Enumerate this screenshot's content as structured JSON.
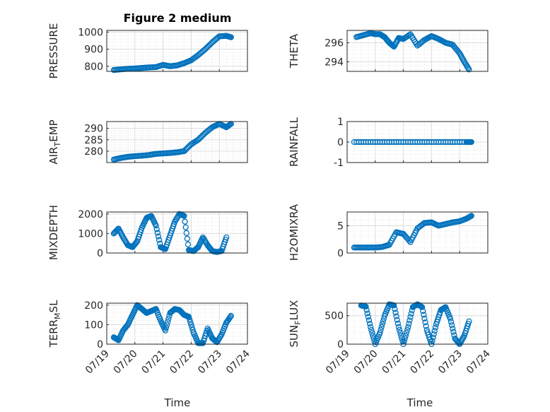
{
  "figure": {
    "title": "Figure 2 medium",
    "xlabel": "Time",
    "x_ticks": [
      "07/19",
      "07/20",
      "07/21",
      "07/22",
      "07/23",
      "07/24"
    ],
    "marker_color": "#0072BD"
  },
  "chart_data": [
    {
      "type": "scatter",
      "marker": "circle",
      "ylabel": "PRESSURE",
      "ylim": [
        770,
        1010
      ],
      "yticks": [
        800,
        900,
        1000
      ],
      "grid": true,
      "x_range": [
        "07/19",
        "07/24"
      ],
      "series": [
        {
          "x": [
            "07/19 06:00",
            "07/19 12:00",
            "07/19 18:00",
            "07/20 00:00",
            "07/20 06:00",
            "07/20 12:00",
            "07/20 18:00",
            "07/21 00:00",
            "07/21 06:00",
            "07/21 12:00",
            "07/21 18:00",
            "07/22 00:00",
            "07/22 06:00",
            "07/22 12:00",
            "07/22 18:00",
            "07/23 00:00",
            "07/23 06:00",
            "07/23 10:00"
          ],
          "y": [
            778,
            782,
            785,
            787,
            790,
            793,
            795,
            808,
            800,
            805,
            818,
            835,
            865,
            900,
            940,
            975,
            978,
            970
          ]
        }
      ]
    },
    {
      "type": "scatter",
      "marker": "circle",
      "ylabel": "THETA",
      "ylim": [
        293,
        297.3
      ],
      "yticks": [
        294,
        296
      ],
      "grid": true,
      "x_range": [
        "07/19",
        "07/24"
      ],
      "series": [
        {
          "x": [
            "07/19 08:00",
            "07/19 14:00",
            "07/19 20:00",
            "07/20 00:00",
            "07/20 04:00",
            "07/20 08:00",
            "07/20 12:00",
            "07/20 16:00",
            "07/20 20:00",
            "07/21 00:00",
            "07/21 06:00",
            "07/21 12:00",
            "07/21 18:00",
            "07/22 00:00",
            "07/22 06:00",
            "07/22 12:00",
            "07/22 18:00",
            "07/23 00:00",
            "07/23 04:00",
            "07/23 08:00"
          ],
          "y": [
            296.6,
            296.8,
            297.0,
            296.9,
            296.9,
            296.6,
            296.0,
            295.6,
            296.5,
            296.4,
            296.9,
            295.7,
            296.3,
            296.7,
            296.4,
            296.0,
            295.8,
            294.9,
            294.0,
            293.2
          ]
        }
      ]
    },
    {
      "type": "scatter",
      "marker": "circle",
      "ylabel": "AIR_TEMP",
      "ylim": [
        275,
        293
      ],
      "yticks": [
        280,
        285,
        290
      ],
      "grid": true,
      "x_range": [
        "07/19",
        "07/24"
      ],
      "series": [
        {
          "x": [
            "07/19 06:00",
            "07/19 12:00",
            "07/19 18:00",
            "07/20 00:00",
            "07/20 06:00",
            "07/20 12:00",
            "07/20 18:00",
            "07/21 00:00",
            "07/21 06:00",
            "07/21 12:00",
            "07/21 18:00",
            "07/22 00:00",
            "07/22 06:00",
            "07/22 12:00",
            "07/22 18:00",
            "07/23 00:00",
            "07/23 06:00",
            "07/23 10:00"
          ],
          "y": [
            276.3,
            277.0,
            277.5,
            277.8,
            278.0,
            278.3,
            278.8,
            279.0,
            279.2,
            279.5,
            280.0,
            283.0,
            285.0,
            288.0,
            290.5,
            292.0,
            290.5,
            292.0
          ]
        }
      ]
    },
    {
      "type": "scatter",
      "marker": "circle",
      "ylabel": "RAINFALL",
      "ylim": [
        -1,
        1
      ],
      "yticks": [
        -1,
        0,
        1
      ],
      "grid": true,
      "x_range": [
        "07/19",
        "07/24"
      ],
      "series": [
        {
          "x": [
            "07/19 06:00",
            "07/19 18:00",
            "07/20 06:00",
            "07/20 18:00",
            "07/21 06:00",
            "07/21 18:00",
            "07/22 06:00",
            "07/22 18:00",
            "07/23 06:00",
            "07/23 10:00"
          ],
          "y": [
            0,
            0,
            0,
            0,
            0,
            0,
            0,
            0,
            0,
            0
          ]
        }
      ]
    },
    {
      "type": "scatter",
      "marker": "circle",
      "ylabel": "MIXDEPTH",
      "ylim": [
        0,
        2100
      ],
      "yticks": [
        0,
        1000,
        2000
      ],
      "grid": true,
      "x_range": [
        "07/19",
        "07/24"
      ],
      "series": [
        {
          "x": [
            "07/19 06:00",
            "07/19 10:00",
            "07/19 14:00",
            "07/19 18:00",
            "07/19 22:00",
            "07/20 02:00",
            "07/20 06:00",
            "07/20 10:00",
            "07/20 14:00",
            "07/20 18:00",
            "07/20 22:00",
            "07/21 02:00",
            "07/21 06:00",
            "07/21 10:00",
            "07/21 14:00",
            "07/21 18:00",
            "07/21 22:00",
            "07/22 02:00",
            "07/22 06:00",
            "07/22 10:00",
            "07/22 14:00",
            "07/22 18:00",
            "07/22 22:00",
            "07/23 02:00",
            "07/23 06:00"
          ],
          "y": [
            1000,
            1250,
            800,
            400,
            300,
            600,
            1300,
            1800,
            1900,
            1400,
            300,
            200,
            900,
            1600,
            2000,
            1900,
            150,
            100,
            300,
            800,
            400,
            100,
            50,
            100,
            800
          ]
        }
      ]
    },
    {
      "type": "scatter",
      "marker": "circle",
      "ylabel": "H2OMIXRA",
      "ylim": [
        0,
        7.5
      ],
      "yticks": [
        0,
        5
      ],
      "grid": true,
      "x_range": [
        "07/19",
        "07/24"
      ],
      "series": [
        {
          "x": [
            "07/19 06:00",
            "07/19 12:00",
            "07/19 18:00",
            "07/20 00:00",
            "07/20 06:00",
            "07/20 12:00",
            "07/20 18:00",
            "07/21 00:00",
            "07/21 06:00",
            "07/21 12:00",
            "07/21 18:00",
            "07/22 00:00",
            "07/22 06:00",
            "07/22 12:00",
            "07/22 18:00",
            "07/23 00:00",
            "07/23 06:00",
            "07/23 10:00"
          ],
          "y": [
            1.0,
            1.0,
            1.0,
            1.0,
            1.1,
            1.5,
            3.8,
            3.5,
            2.0,
            4.5,
            5.5,
            5.6,
            5.0,
            5.3,
            5.6,
            5.8,
            6.3,
            6.8
          ]
        }
      ]
    },
    {
      "type": "scatter",
      "marker": "circle",
      "ylabel": "TERR_MSL",
      "ylim": [
        0,
        210
      ],
      "yticks": [
        0,
        100,
        200
      ],
      "grid": true,
      "x_range": [
        "07/19",
        "07/24"
      ],
      "series": [
        {
          "x": [
            "07/19 06:00",
            "07/19 10:00",
            "07/19 14:00",
            "07/19 18:00",
            "07/19 22:00",
            "07/20 02:00",
            "07/20 06:00",
            "07/20 10:00",
            "07/20 14:00",
            "07/20 18:00",
            "07/20 22:00",
            "07/21 02:00",
            "07/21 06:00",
            "07/21 10:00",
            "07/21 14:00",
            "07/21 18:00",
            "07/21 22:00",
            "07/22 02:00",
            "07/22 06:00",
            "07/22 10:00",
            "07/22 14:00",
            "07/22 18:00",
            "07/22 22:00",
            "07/23 02:00",
            "07/23 06:00",
            "07/23 10:00"
          ],
          "y": [
            35,
            20,
            70,
            100,
            150,
            200,
            180,
            160,
            170,
            180,
            120,
            70,
            160,
            180,
            175,
            150,
            140,
            60,
            5,
            5,
            80,
            30,
            10,
            50,
            110,
            145
          ]
        }
      ]
    },
    {
      "type": "scatter",
      "marker": "circle",
      "ylabel": "SUN_FLUX",
      "ylim": [
        0,
        720
      ],
      "yticks": [
        0,
        500
      ],
      "grid": true,
      "x_range": [
        "07/19",
        "07/24"
      ],
      "series": [
        {
          "x": [
            "07/19 12:00",
            "07/19 16:00",
            "07/19 20:00",
            "07/20 00:00",
            "07/20 04:00",
            "07/20 08:00",
            "07/20 12:00",
            "07/20 16:00",
            "07/20 20:00",
            "07/21 00:00",
            "07/21 04:00",
            "07/21 08:00",
            "07/21 12:00",
            "07/21 16:00",
            "07/21 20:00",
            "07/22 00:00",
            "07/22 04:00",
            "07/22 08:00",
            "07/22 12:00",
            "07/22 16:00",
            "07/22 20:00",
            "07/23 00:00",
            "07/23 04:00",
            "07/23 08:00"
          ],
          "y": [
            680,
            660,
            300,
            0,
            200,
            500,
            700,
            680,
            300,
            0,
            300,
            650,
            700,
            650,
            250,
            0,
            350,
            600,
            650,
            450,
            100,
            0,
            150,
            400
          ]
        }
      ]
    }
  ]
}
